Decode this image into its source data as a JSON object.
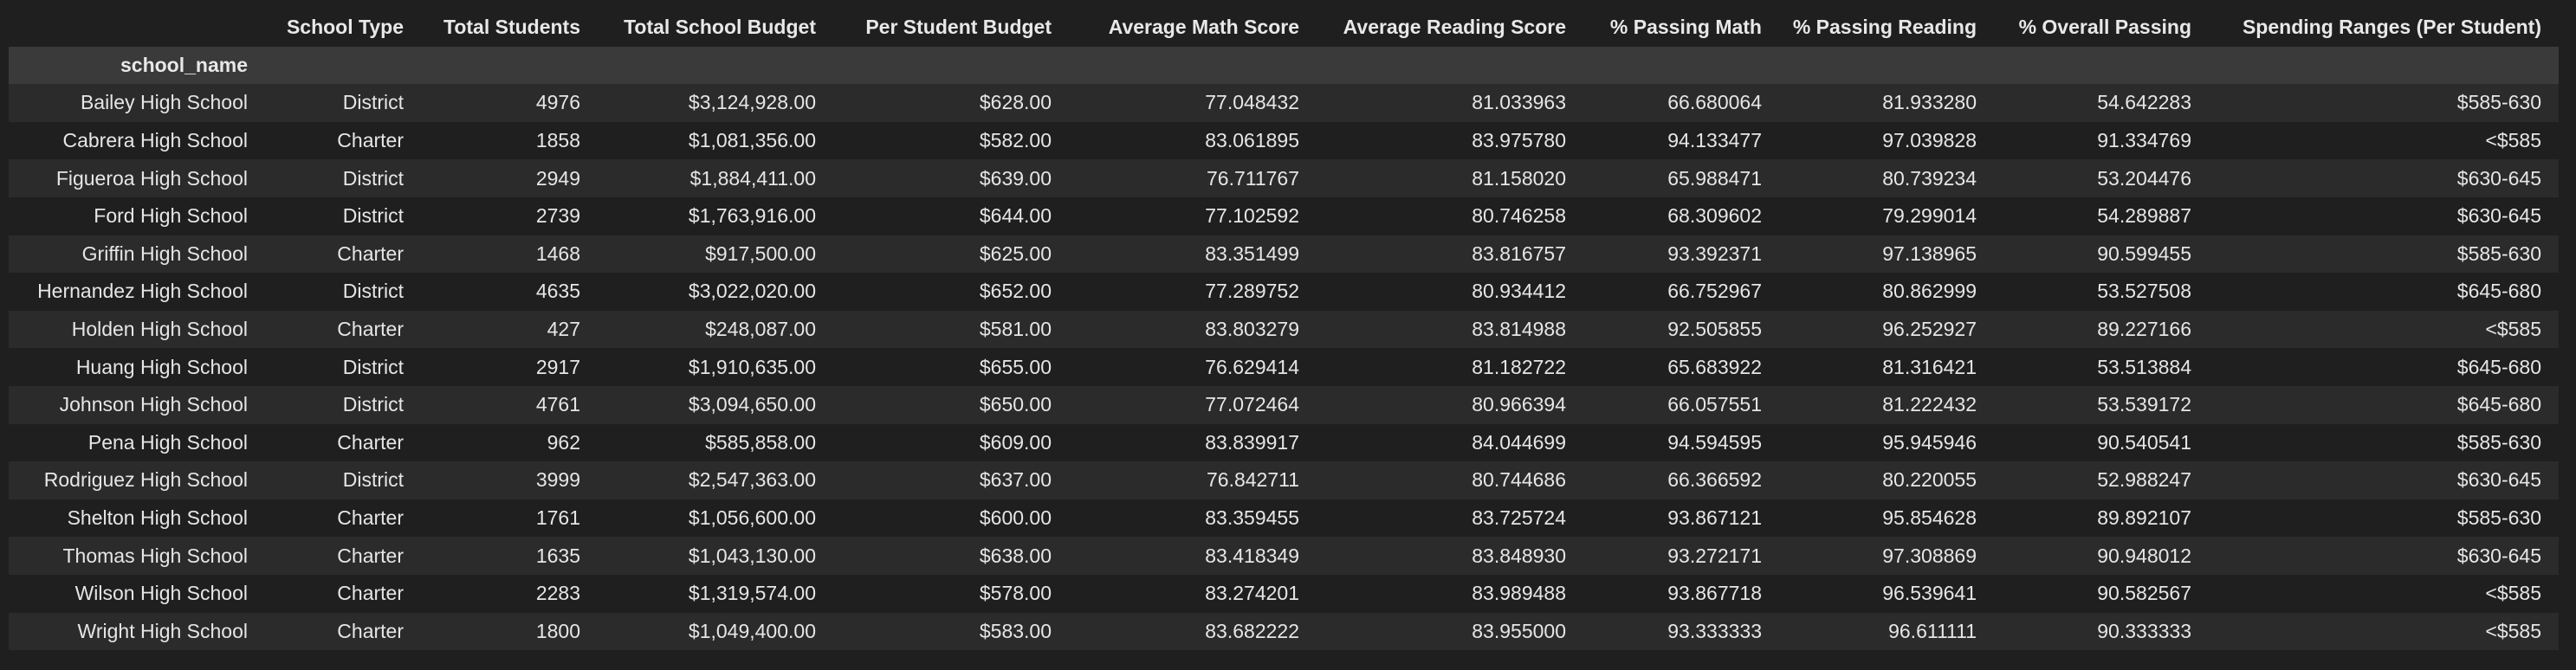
{
  "table": {
    "index_name": "school_name",
    "columns": [
      "School Type",
      "Total Students",
      "Total School Budget",
      "Per Student Budget",
      "Average Math Score",
      "Average Reading Score",
      "% Passing Math",
      "% Passing Reading",
      "% Overall Passing",
      "Spending Ranges (Per Student)"
    ],
    "rows": [
      {
        "name": "Bailey High School",
        "cells": [
          "District",
          "4976",
          "$3,124,928.00",
          "$628.00",
          "77.048432",
          "81.033963",
          "66.680064",
          "81.933280",
          "54.642283",
          "$585-630"
        ]
      },
      {
        "name": "Cabrera High School",
        "cells": [
          "Charter",
          "1858",
          "$1,081,356.00",
          "$582.00",
          "83.061895",
          "83.975780",
          "94.133477",
          "97.039828",
          "91.334769",
          "<$585"
        ]
      },
      {
        "name": "Figueroa High School",
        "cells": [
          "District",
          "2949",
          "$1,884,411.00",
          "$639.00",
          "76.711767",
          "81.158020",
          "65.988471",
          "80.739234",
          "53.204476",
          "$630-645"
        ]
      },
      {
        "name": "Ford High School",
        "cells": [
          "District",
          "2739",
          "$1,763,916.00",
          "$644.00",
          "77.102592",
          "80.746258",
          "68.309602",
          "79.299014",
          "54.289887",
          "$630-645"
        ]
      },
      {
        "name": "Griffin High School",
        "cells": [
          "Charter",
          "1468",
          "$917,500.00",
          "$625.00",
          "83.351499",
          "83.816757",
          "93.392371",
          "97.138965",
          "90.599455",
          "$585-630"
        ]
      },
      {
        "name": "Hernandez High School",
        "cells": [
          "District",
          "4635",
          "$3,022,020.00",
          "$652.00",
          "77.289752",
          "80.934412",
          "66.752967",
          "80.862999",
          "53.527508",
          "$645-680"
        ]
      },
      {
        "name": "Holden High School",
        "cells": [
          "Charter",
          "427",
          "$248,087.00",
          "$581.00",
          "83.803279",
          "83.814988",
          "92.505855",
          "96.252927",
          "89.227166",
          "<$585"
        ]
      },
      {
        "name": "Huang High School",
        "cells": [
          "District",
          "2917",
          "$1,910,635.00",
          "$655.00",
          "76.629414",
          "81.182722",
          "65.683922",
          "81.316421",
          "53.513884",
          "$645-680"
        ]
      },
      {
        "name": "Johnson High School",
        "cells": [
          "District",
          "4761",
          "$3,094,650.00",
          "$650.00",
          "77.072464",
          "80.966394",
          "66.057551",
          "81.222432",
          "53.539172",
          "$645-680"
        ]
      },
      {
        "name": "Pena High School",
        "cells": [
          "Charter",
          "962",
          "$585,858.00",
          "$609.00",
          "83.839917",
          "84.044699",
          "94.594595",
          "95.945946",
          "90.540541",
          "$585-630"
        ]
      },
      {
        "name": "Rodriguez High School",
        "cells": [
          "District",
          "3999",
          "$2,547,363.00",
          "$637.00",
          "76.842711",
          "80.744686",
          "66.366592",
          "80.220055",
          "52.988247",
          "$630-645"
        ]
      },
      {
        "name": "Shelton High School",
        "cells": [
          "Charter",
          "1761",
          "$1,056,600.00",
          "$600.00",
          "83.359455",
          "83.725724",
          "93.867121",
          "95.854628",
          "89.892107",
          "$585-630"
        ]
      },
      {
        "name": "Thomas High School",
        "cells": [
          "Charter",
          "1635",
          "$1,043,130.00",
          "$638.00",
          "83.418349",
          "83.848930",
          "93.272171",
          "97.308869",
          "90.948012",
          "$630-645"
        ]
      },
      {
        "name": "Wilson High School",
        "cells": [
          "Charter",
          "2283",
          "$1,319,574.00",
          "$578.00",
          "83.274201",
          "83.989488",
          "93.867718",
          "96.539641",
          "90.582567",
          "<$585"
        ]
      },
      {
        "name": "Wright High School",
        "cells": [
          "Charter",
          "1800",
          "$1,049,400.00",
          "$583.00",
          "83.682222",
          "83.955000",
          "93.333333",
          "96.611111",
          "90.333333",
          "<$585"
        ]
      }
    ]
  }
}
